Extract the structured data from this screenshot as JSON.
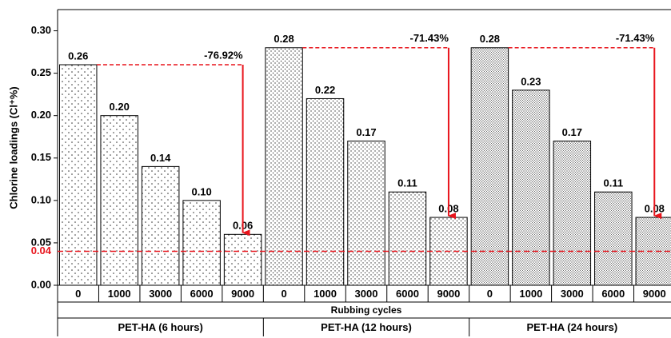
{
  "chart_data": {
    "type": "bar",
    "y_label": "Chlorine loadings (Cl⁺%)",
    "x_label": "Rubbing cycles",
    "ylim": [
      0,
      0.325
    ],
    "yticks": [
      {
        "value": 0,
        "label": "0.00"
      },
      0.05,
      {
        "value": 0.1,
        "label": "0.10"
      },
      0.15,
      {
        "value": 0.2,
        "label": "0.20"
      },
      0.25,
      {
        "value": 0.3,
        "label": "0.30"
      }
    ],
    "reference_line": {
      "value": 0.04,
      "color": "#e8141c"
    },
    "annotation_color": "#e8141c",
    "groups": [
      {
        "name": "PET-HA (6 hours)",
        "categories": [
          "0",
          "1000",
          "3000",
          "6000",
          "9000"
        ],
        "values": [
          0.26,
          0.2,
          0.14,
          0.1,
          0.06
        ],
        "value_labels": [
          "0.26",
          "0.20",
          "0.14",
          "0.10",
          "0.06"
        ],
        "change_label": "-76.92%"
      },
      {
        "name": "PET-HA (12 hours)",
        "categories": [
          "0",
          "1000",
          "3000",
          "6000",
          "9000"
        ],
        "values": [
          0.28,
          0.22,
          0.17,
          0.11,
          0.08
        ],
        "value_labels": [
          "0.28",
          "0.22",
          "0.17",
          "0.11",
          "0.08"
        ],
        "change_label": "-71.43%"
      },
      {
        "name": "PET-HA (24 hours)",
        "categories": [
          "0",
          "1000",
          "3000",
          "6000",
          "9000"
        ],
        "values": [
          0.28,
          0.23,
          0.17,
          0.11,
          0.08
        ],
        "value_labels": [
          "0.28",
          "0.23",
          "0.17",
          "0.11",
          "0.08"
        ],
        "change_label": "-71.43%"
      }
    ]
  }
}
